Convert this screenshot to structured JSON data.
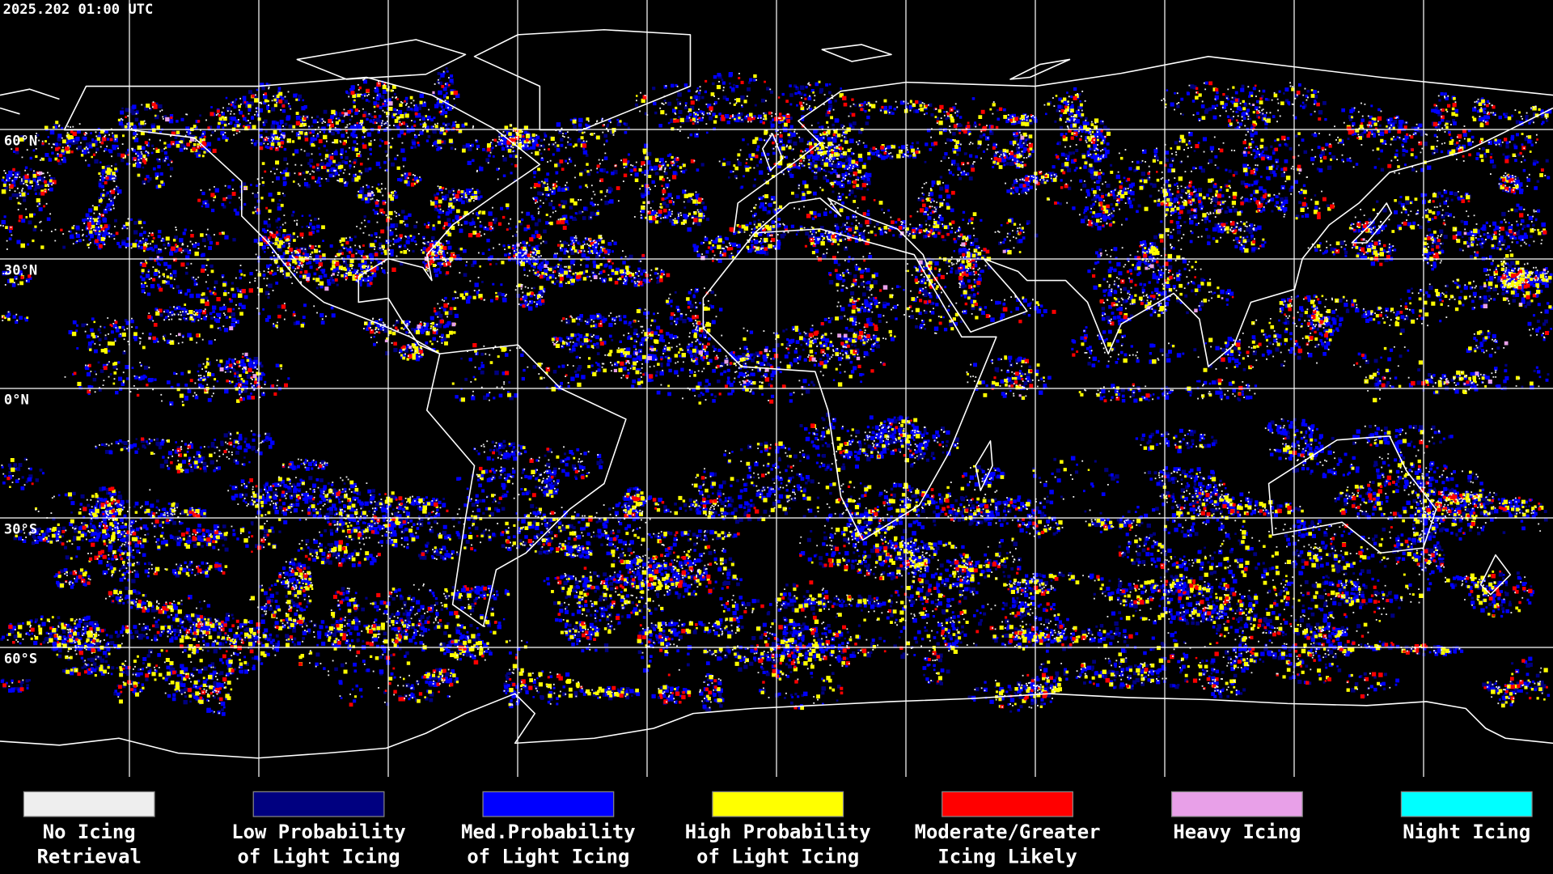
{
  "timestamp": "2025.202 01:00 UTC",
  "latitude_labels": [
    "60°N",
    "30°N",
    "0°N",
    "30°S",
    "60°S"
  ],
  "legend": [
    {
      "lines": [
        "No Icing",
        "Retrieval"
      ],
      "color": "#eeeeee"
    },
    {
      "lines": [
        "Low Probability",
        "of Light Icing"
      ],
      "color": "#000080"
    },
    {
      "lines": [
        "Med.Probability",
        "of Light Icing"
      ],
      "color": "#0000ff"
    },
    {
      "lines": [
        "High Probability",
        "of Light Icing"
      ],
      "color": "#ffff00"
    },
    {
      "lines": [
        "Moderate/Greater",
        "Icing Likely"
      ],
      "color": "#ff0000"
    },
    {
      "lines": [
        "Heavy Icing"
      ],
      "color": "#e8a0e8"
    },
    {
      "lines": [
        "Night Icing"
      ],
      "color": "#00ffff"
    }
  ]
}
